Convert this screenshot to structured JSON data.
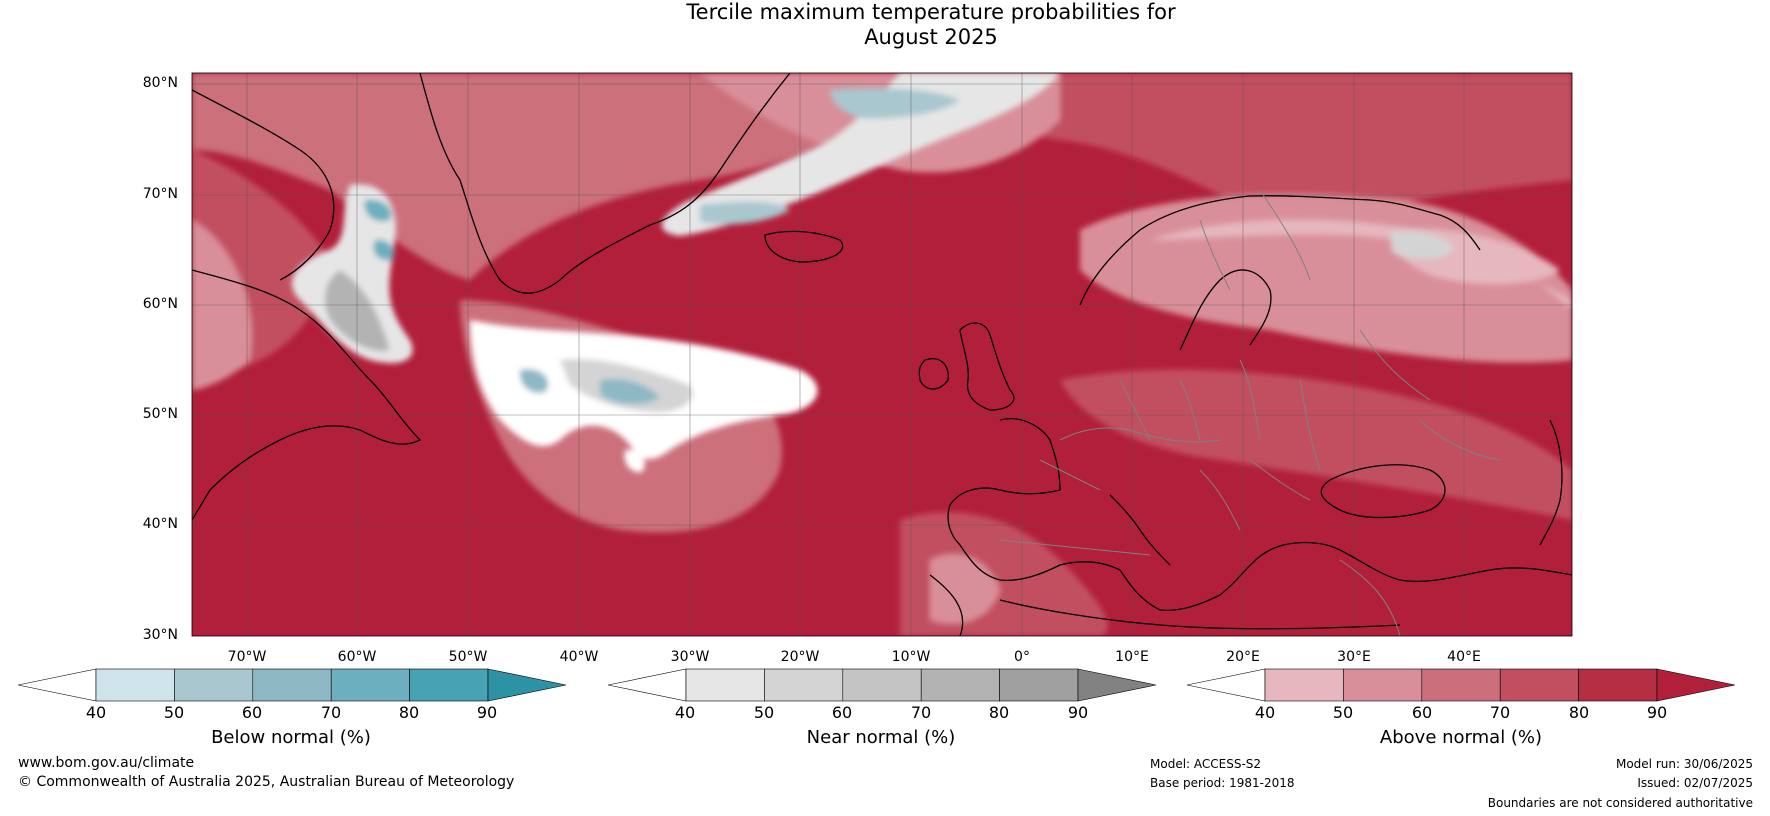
{
  "title": {
    "line1": "Tercile maximum temperature probabilities for",
    "line2": "August 2025"
  },
  "map": {
    "lat_labels": [
      "80°N",
      "70°N",
      "60°N",
      "50°N",
      "40°N",
      "30°N"
    ],
    "lon_labels": [
      "70°W",
      "60°W",
      "50°W",
      "40°W",
      "30°W",
      "20°W",
      "10°W",
      "0°",
      "10°E",
      "20°E",
      "30°E",
      "40°E"
    ],
    "extent": {
      "lon_min": -75,
      "lon_max": 50,
      "lat_min": 30,
      "lat_max": 81
    }
  },
  "colorbars": {
    "below": {
      "title": "Below normal (%)",
      "ticks": [
        "40",
        "50",
        "60",
        "70",
        "80",
        "90"
      ],
      "colors": [
        "#ffffff",
        "#cfe4ea",
        "#a9c7ce",
        "#8db8c4",
        "#6cafbe",
        "#47a3b3",
        "#2e92a5"
      ]
    },
    "near": {
      "title": "Near normal (%)",
      "ticks": [
        "40",
        "50",
        "60",
        "70",
        "80",
        "90"
      ],
      "colors": [
        "#ffffff",
        "#e6e6e6",
        "#d4d4d4",
        "#c4c4c4",
        "#b3b3b3",
        "#a0a0a0",
        "#828282"
      ]
    },
    "above": {
      "title": "Above normal (%)",
      "ticks": [
        "40",
        "50",
        "60",
        "70",
        "80",
        "90"
      ],
      "colors": [
        "#ffffff",
        "#e6b7bf",
        "#d98f9a",
        "#cc6f7c",
        "#c24f60",
        "#b52e44",
        "#b21f3a"
      ]
    }
  },
  "footer": {
    "url": "www.bom.gov.au/climate",
    "copyright": "© Commonwealth of Australia 2025, Australian Bureau of Meteorology",
    "model": "Model: ACCESS-S2",
    "base_period": "Base period: 1981-2018",
    "model_run": "Model run: 30/06/2025",
    "issued": "Issued: 02/07/2025",
    "disclaimer": "Boundaries are not considered authoritative"
  }
}
